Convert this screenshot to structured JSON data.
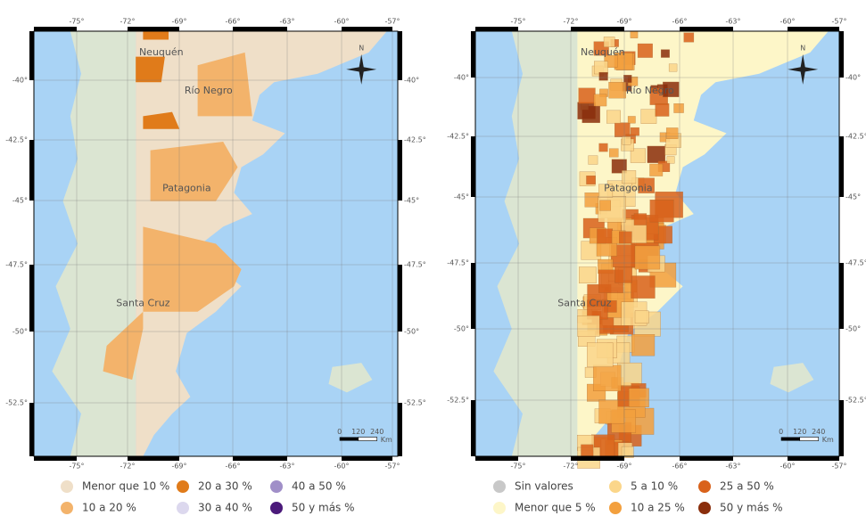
{
  "maps": [
    {
      "lon_ticks": [
        "-75°",
        "-72°",
        "-69°",
        "-66°",
        "-63°",
        "-60°",
        "-57°"
      ],
      "lat_ticks": [
        "-40°",
        "-42.5°",
        "-45°",
        "-47.5°",
        "-50°",
        "-52.5°"
      ],
      "places": [
        "Neuquén",
        "Río Negro",
        "Patagonia",
        "Santa Cruz"
      ],
      "north": "N",
      "scale": [
        "0",
        "120",
        "240"
      ],
      "scale_unit": "Km",
      "legend": [
        {
          "label": "Menor que 10 %",
          "color": "#efdfc8"
        },
        {
          "label": "20 a 30 %",
          "color": "#e07b1a"
        },
        {
          "label": "40 a 50 %",
          "color": "#a08fc8"
        },
        {
          "label": "10 a 20 %",
          "color": "#f3b36b"
        },
        {
          "label": "30 a 40 %",
          "color": "#dcd8ee"
        },
        {
          "label": "50 y más %",
          "color": "#4b1a7a"
        }
      ]
    },
    {
      "lon_ticks": [
        "-75°",
        "-72°",
        "-69°",
        "-66°",
        "-63°",
        "-60°",
        "-57°"
      ],
      "lat_ticks": [
        "-40°",
        "-42.5°",
        "-45°",
        "-47.5°",
        "-50°",
        "-52.5°"
      ],
      "places": [
        "Neuquén",
        "Río Negro",
        "Patagonia",
        "Santa Cruz"
      ],
      "north": "N",
      "scale": [
        "0",
        "120",
        "240"
      ],
      "scale_unit": "Km",
      "legend": [
        {
          "label": "Sin valores",
          "color": "#c8c8c8"
        },
        {
          "label": "5 a 10 %",
          "color": "#fbd68a"
        },
        {
          "label": "25 a 50 %",
          "color": "#d9621b"
        },
        {
          "label": "Menor que 5 %",
          "color": "#fdf6c8"
        },
        {
          "label": "10 a 25 %",
          "color": "#f3a03e"
        },
        {
          "label": "50 y más %",
          "color": "#8a2e0c"
        }
      ]
    }
  ]
}
